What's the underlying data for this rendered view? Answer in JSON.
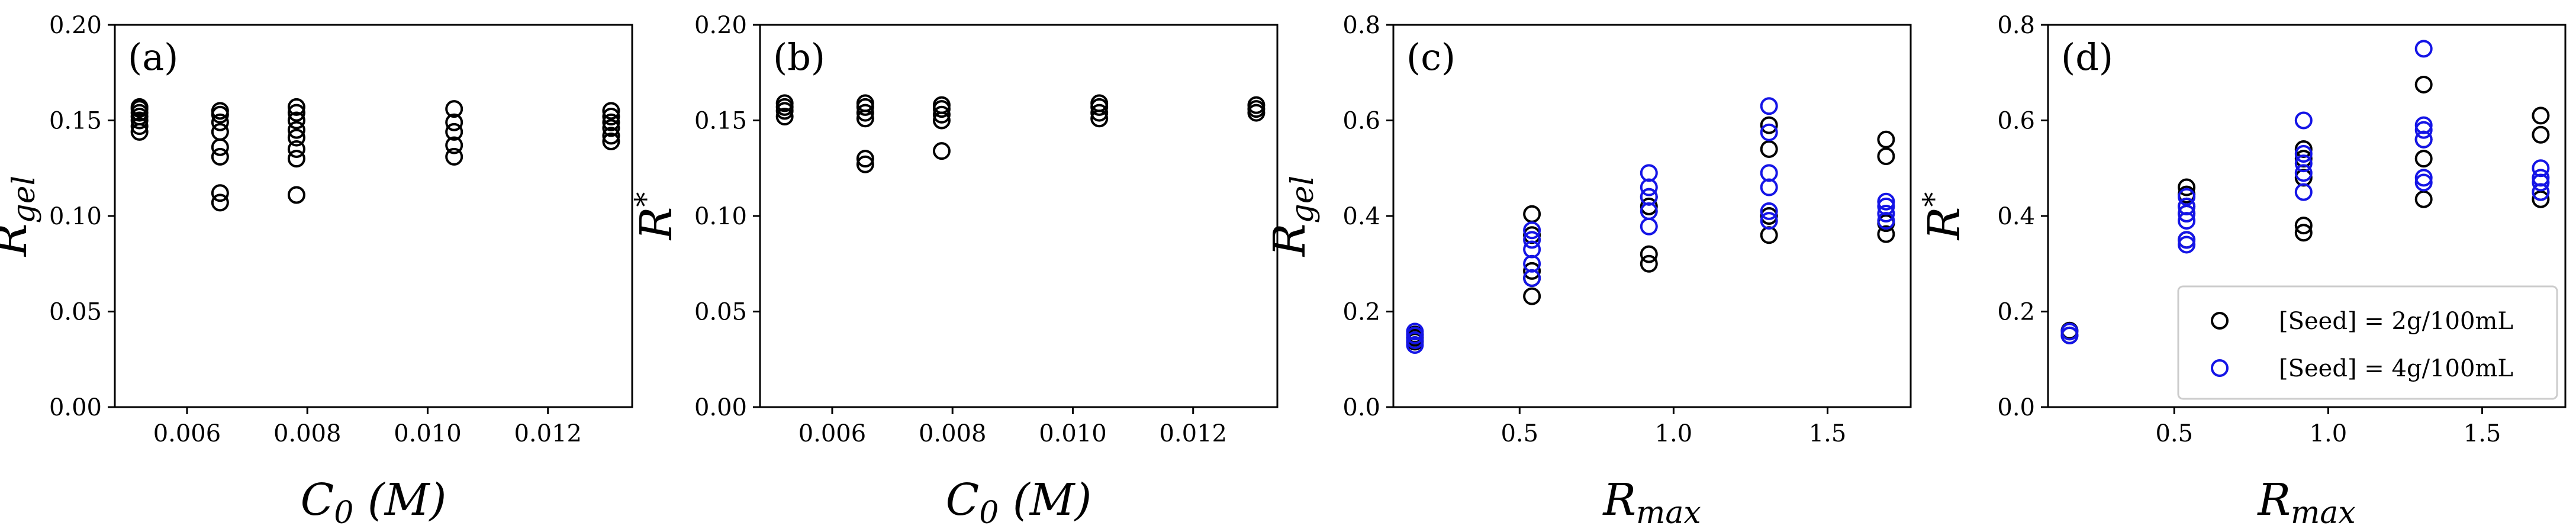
{
  "colors": {
    "black_series": "#000000",
    "blue_series": "#1414e6",
    "axes": "#000000",
    "legend_border": "#cccccc"
  },
  "chart_data": [
    {
      "type": "scatter",
      "panel_label": "(a)",
      "xlabel_main": "C",
      "xlabel_sub": "0",
      "xlabel_unit": " (M)",
      "ylabel_main": "R",
      "ylabel_sub": "gel",
      "ylabel_sup": "",
      "xlim": [
        0.0048,
        0.0134
      ],
      "ylim": [
        0.0,
        0.2
      ],
      "xticks": [
        0.006,
        0.008,
        0.01,
        0.012
      ],
      "xtick_labels": [
        "0.006",
        "0.008",
        "0.010",
        "0.012"
      ],
      "yticks": [
        0.0,
        0.05,
        0.1,
        0.15,
        0.2
      ],
      "ytick_labels": [
        "0.00",
        "0.05",
        "0.10",
        "0.15",
        "0.20"
      ],
      "series": [
        {
          "color_key": "black_series",
          "points": [
            [
              0.00521,
              0.144
            ],
            [
              0.00521,
              0.147
            ],
            [
              0.00521,
              0.15
            ],
            [
              0.00521,
              0.152
            ],
            [
              0.00521,
              0.154
            ],
            [
              0.00521,
              0.156
            ],
            [
              0.00521,
              0.157
            ],
            [
              0.00655,
              0.107
            ],
            [
              0.00655,
              0.112
            ],
            [
              0.00655,
              0.131
            ],
            [
              0.00655,
              0.136
            ],
            [
              0.00655,
              0.144
            ],
            [
              0.00655,
              0.149
            ],
            [
              0.00655,
              0.153
            ],
            [
              0.00655,
              0.155
            ],
            [
              0.00782,
              0.111
            ],
            [
              0.00782,
              0.13
            ],
            [
              0.00782,
              0.135
            ],
            [
              0.00782,
              0.141
            ],
            [
              0.00782,
              0.145
            ],
            [
              0.00782,
              0.15
            ],
            [
              0.00782,
              0.154
            ],
            [
              0.00782,
              0.157
            ],
            [
              0.01044,
              0.131
            ],
            [
              0.01044,
              0.137
            ],
            [
              0.01044,
              0.144
            ],
            [
              0.01044,
              0.149
            ],
            [
              0.01044,
              0.156
            ],
            [
              0.01305,
              0.139
            ],
            [
              0.01305,
              0.142
            ],
            [
              0.01305,
              0.146
            ],
            [
              0.01305,
              0.149
            ],
            [
              0.01305,
              0.152
            ],
            [
              0.01305,
              0.155
            ]
          ]
        }
      ]
    },
    {
      "type": "scatter",
      "panel_label": "(b)",
      "xlabel_main": "C",
      "xlabel_sub": "0",
      "xlabel_unit": " (M)",
      "ylabel_main": "R",
      "ylabel_sub": "",
      "ylabel_sup": "*",
      "xlim": [
        0.0048,
        0.0134
      ],
      "ylim": [
        0.0,
        0.2
      ],
      "xticks": [
        0.006,
        0.008,
        0.01,
        0.012
      ],
      "xtick_labels": [
        "0.006",
        "0.008",
        "0.010",
        "0.012"
      ],
      "yticks": [
        0.0,
        0.05,
        0.1,
        0.15,
        0.2
      ],
      "ytick_labels": [
        "0.00",
        "0.05",
        "0.10",
        "0.15",
        "0.20"
      ],
      "series": [
        {
          "color_key": "black_series",
          "points": [
            [
              0.00521,
              0.152
            ],
            [
              0.00521,
              0.155
            ],
            [
              0.00521,
              0.157
            ],
            [
              0.00521,
              0.159
            ],
            [
              0.00655,
              0.127
            ],
            [
              0.00655,
              0.13
            ],
            [
              0.00655,
              0.151
            ],
            [
              0.00655,
              0.154
            ],
            [
              0.00655,
              0.157
            ],
            [
              0.00655,
              0.159
            ],
            [
              0.00782,
              0.134
            ],
            [
              0.00782,
              0.15
            ],
            [
              0.00782,
              0.153
            ],
            [
              0.00782,
              0.156
            ],
            [
              0.00782,
              0.158
            ],
            [
              0.01044,
              0.151
            ],
            [
              0.01044,
              0.154
            ],
            [
              0.01044,
              0.157
            ],
            [
              0.01044,
              0.159
            ],
            [
              0.01305,
              0.154
            ],
            [
              0.01305,
              0.156
            ],
            [
              0.01305,
              0.158
            ]
          ]
        }
      ]
    },
    {
      "type": "scatter",
      "panel_label": "(c)",
      "xlabel_main": "R",
      "xlabel_sub": "max",
      "xlabel_unit": "",
      "ylabel_main": "R",
      "ylabel_sub": "gel",
      "ylabel_sup": "",
      "xlim": [
        0.09,
        1.77
      ],
      "ylim": [
        0.0,
        0.8
      ],
      "xticks": [
        0.5,
        1.0,
        1.5
      ],
      "xtick_labels": [
        "0.5",
        "1.0",
        "1.5"
      ],
      "yticks": [
        0.0,
        0.2,
        0.4,
        0.6,
        0.8
      ],
      "ytick_labels": [
        "0.0",
        "0.2",
        "0.4",
        "0.6",
        "0.8"
      ],
      "series": [
        {
          "color_key": "black_series",
          "points": [
            [
              0.16,
              0.137
            ],
            [
              0.16,
              0.145
            ],
            [
              0.16,
              0.152
            ],
            [
              0.54,
              0.232
            ],
            [
              0.54,
              0.27
            ],
            [
              0.54,
              0.285
            ],
            [
              0.54,
              0.36
            ],
            [
              0.54,
              0.404
            ],
            [
              0.92,
              0.3
            ],
            [
              0.92,
              0.32
            ],
            [
              0.92,
              0.42
            ],
            [
              0.92,
              0.44
            ],
            [
              1.31,
              0.36
            ],
            [
              1.31,
              0.4
            ],
            [
              1.31,
              0.54
            ],
            [
              1.31,
              0.59
            ],
            [
              1.69,
              0.362
            ],
            [
              1.69,
              0.385
            ],
            [
              1.69,
              0.525
            ],
            [
              1.69,
              0.56
            ]
          ]
        },
        {
          "color_key": "blue_series",
          "points": [
            [
              0.16,
              0.13
            ],
            [
              0.16,
              0.14
            ],
            [
              0.16,
              0.15
            ],
            [
              0.16,
              0.158
            ],
            [
              0.54,
              0.27
            ],
            [
              0.54,
              0.3
            ],
            [
              0.54,
              0.33
            ],
            [
              0.54,
              0.35
            ],
            [
              0.54,
              0.37
            ],
            [
              0.92,
              0.378
            ],
            [
              0.92,
              0.41
            ],
            [
              0.92,
              0.44
            ],
            [
              0.92,
              0.46
            ],
            [
              0.92,
              0.49
            ],
            [
              1.31,
              0.39
            ],
            [
              1.31,
              0.41
            ],
            [
              1.31,
              0.46
            ],
            [
              1.31,
              0.49
            ],
            [
              1.31,
              0.575
            ],
            [
              1.31,
              0.63
            ],
            [
              1.69,
              0.39
            ],
            [
              1.69,
              0.405
            ],
            [
              1.69,
              0.42
            ],
            [
              1.69,
              0.43
            ]
          ]
        }
      ]
    },
    {
      "type": "scatter",
      "panel_label": "(d)",
      "xlabel_main": "R",
      "xlabel_sub": "max",
      "xlabel_unit": "",
      "ylabel_main": "R",
      "ylabel_sub": "",
      "ylabel_sup": "*",
      "xlim": [
        0.09,
        1.77
      ],
      "ylim": [
        0.0,
        0.8
      ],
      "xticks": [
        0.5,
        1.0,
        1.5
      ],
      "xtick_labels": [
        "0.5",
        "1.0",
        "1.5"
      ],
      "yticks": [
        0.0,
        0.2,
        0.4,
        0.6,
        0.8
      ],
      "ytick_labels": [
        "0.0",
        "0.2",
        "0.4",
        "0.6",
        "0.8"
      ],
      "legend": {
        "location": "lower right",
        "entries": [
          {
            "label": "[Seed] = 2g/100mL",
            "color_key": "black_series"
          },
          {
            "label": "[Seed] = 4g/100mL",
            "color_key": "blue_series"
          }
        ]
      },
      "series": [
        {
          "color_key": "black_series",
          "points": [
            [
              0.16,
              0.15
            ],
            [
              0.16,
              0.16
            ],
            [
              0.54,
              0.35
            ],
            [
              0.54,
              0.405
            ],
            [
              0.54,
              0.42
            ],
            [
              0.54,
              0.445
            ],
            [
              0.54,
              0.46
            ],
            [
              0.92,
              0.365
            ],
            [
              0.92,
              0.38
            ],
            [
              0.92,
              0.48
            ],
            [
              0.92,
              0.52
            ],
            [
              0.92,
              0.54
            ],
            [
              1.31,
              0.435
            ],
            [
              1.31,
              0.52
            ],
            [
              1.31,
              0.56
            ],
            [
              1.31,
              0.675
            ],
            [
              1.69,
              0.435
            ],
            [
              1.69,
              0.45
            ],
            [
              1.69,
              0.57
            ],
            [
              1.69,
              0.61
            ]
          ]
        },
        {
          "color_key": "blue_series",
          "points": [
            [
              0.16,
              0.15
            ],
            [
              0.16,
              0.158
            ],
            [
              0.54,
              0.34
            ],
            [
              0.54,
              0.35
            ],
            [
              0.54,
              0.39
            ],
            [
              0.54,
              0.405
            ],
            [
              0.54,
              0.42
            ],
            [
              0.54,
              0.44
            ],
            [
              0.92,
              0.45
            ],
            [
              0.92,
              0.49
            ],
            [
              0.92,
              0.51
            ],
            [
              0.92,
              0.53
            ],
            [
              0.92,
              0.6
            ],
            [
              1.31,
              0.47
            ],
            [
              1.31,
              0.48
            ],
            [
              1.31,
              0.56
            ],
            [
              1.31,
              0.58
            ],
            [
              1.31,
              0.59
            ],
            [
              1.31,
              0.75
            ],
            [
              1.69,
              0.45
            ],
            [
              1.69,
              0.47
            ],
            [
              1.69,
              0.48
            ],
            [
              1.69,
              0.5
            ]
          ]
        }
      ]
    }
  ]
}
